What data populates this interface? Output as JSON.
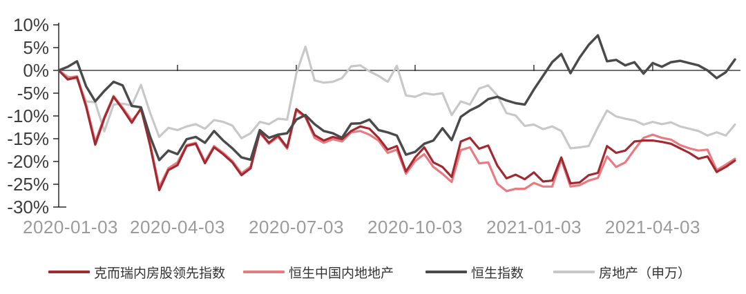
{
  "chart_data": {
    "type": "line",
    "title": "",
    "grid": false,
    "legend_position": "bottom",
    "x_axis": {
      "unit": "week",
      "tick_labels": [
        "2020-01-03",
        "2020-04-03",
        "2020-07-03",
        "2020-10-03",
        "2021-01-03",
        "2021-04-03"
      ],
      "tick_weeks": [
        0,
        13,
        26,
        39,
        52,
        65
      ]
    },
    "y_axis": {
      "range": [
        -30,
        10
      ],
      "tick_values": [
        10,
        5,
        0,
        -5,
        -10,
        -15,
        -20,
        -25,
        -30
      ],
      "tick_labels": [
        "10%",
        "5%",
        "0%",
        "-5%",
        "-10%",
        "-15%",
        "-20%",
        "-25%",
        "-30%"
      ]
    },
    "series": [
      {
        "name": "克而瑞内房股领先指数",
        "color": "#A2292F",
        "values": [
          0,
          -2.0,
          -1.5,
          -8.0,
          -16.3,
          -10.5,
          -5.8,
          -8.5,
          -11.5,
          -8.3,
          -16.5,
          -26.3,
          -21.9,
          -20.8,
          -16.6,
          -16.1,
          -20.4,
          -16.9,
          -18.4,
          -20.2,
          -23.0,
          -21.5,
          -13.5,
          -15.9,
          -14.3,
          -16.9,
          -8.5,
          -10.1,
          -14.2,
          -15.4,
          -14.6,
          -15.1,
          -13.3,
          -12.3,
          -12.8,
          -14.8,
          -17.4,
          -16.6,
          -22.2,
          -19.1,
          -16.9,
          -20.2,
          -21.2,
          -23.4,
          -15.6,
          -14.8,
          -17.2,
          -16.5,
          -20.9,
          -23.7,
          -22.9,
          -23.9,
          -22.4,
          -24.4,
          -24.2,
          -19.1,
          -24.8,
          -24.6,
          -23.0,
          -22.5,
          -16.6,
          -18.1,
          -17.6,
          -15.6,
          -15.4,
          -15.4,
          -15.7,
          -16.1,
          -17.1,
          -18.1,
          -19.4,
          -18.9,
          -22.3,
          -21.2,
          -19.8
        ]
      },
      {
        "name": "恒生中国内地地产",
        "color": "#E97A80",
        "values": [
          0,
          -1.6,
          -1.3,
          -7.5,
          -15.7,
          -10.2,
          -5.6,
          -8.2,
          -11.0,
          -8.6,
          -16.0,
          -25.6,
          -21.5,
          -20.2,
          -16.4,
          -15.9,
          -20.0,
          -16.6,
          -18.1,
          -19.9,
          -22.6,
          -21.1,
          -13.7,
          -16.1,
          -14.6,
          -17.2,
          -8.8,
          -10.3,
          -14.8,
          -15.9,
          -15.1,
          -15.6,
          -13.6,
          -13.3,
          -14.1,
          -15.4,
          -18.1,
          -17.4,
          -22.7,
          -19.9,
          -18.4,
          -21.2,
          -22.7,
          -24.5,
          -17.5,
          -16.9,
          -20.4,
          -20.2,
          -24.9,
          -26.5,
          -26.0,
          -26.0,
          -24.7,
          -25.5,
          -25.5,
          -19.6,
          -25.5,
          -25.2,
          -24.2,
          -23.6,
          -18.9,
          -21.2,
          -20.2,
          -17.4,
          -14.8,
          -14.1,
          -14.8,
          -15.2,
          -16.4,
          -17.1,
          -17.6,
          -17.4,
          -21.9,
          -20.7,
          -19.4
        ]
      },
      {
        "name": "恒生指数",
        "color": "#4A4A4B",
        "values": [
          0,
          0.8,
          2.0,
          -3.5,
          -6.8,
          -4.5,
          -2.5,
          -3.3,
          -7.8,
          -8.1,
          -14.5,
          -19.7,
          -17.6,
          -18.4,
          -15.1,
          -14.6,
          -15.9,
          -13.3,
          -15.4,
          -17.1,
          -19.1,
          -19.6,
          -13.1,
          -14.8,
          -14.1,
          -13.8,
          -10.8,
          -9.8,
          -11.8,
          -13.3,
          -13.8,
          -14.8,
          -11.7,
          -11.6,
          -10.8,
          -13.1,
          -13.6,
          -14.3,
          -18.5,
          -17.9,
          -16.1,
          -15.4,
          -12.7,
          -15.3,
          -10.2,
          -8.8,
          -7.8,
          -6.3,
          -5.8,
          -6.6,
          -7.2,
          -7.5,
          -4.2,
          -1.2,
          1.8,
          3.6,
          -0.6,
          2.8,
          5.6,
          7.7,
          2.0,
          2.3,
          1.1,
          1.8,
          -0.7,
          1.6,
          0.8,
          1.8,
          2.1,
          1.6,
          1.1,
          0.0,
          -1.7,
          -0.4,
          2.4
        ]
      },
      {
        "name": "房地产（申万）",
        "color": "#C8C8C8",
        "values": [
          0,
          -1.3,
          -2.0,
          -6.8,
          -7.0,
          -13.4,
          -7.5,
          -7.3,
          -7.7,
          -3.2,
          -9.3,
          -14.6,
          -12.6,
          -13.1,
          -12.3,
          -11.8,
          -12.8,
          -10.9,
          -11.3,
          -12.1,
          -14.9,
          -13.8,
          -11.3,
          -11.8,
          -10.6,
          -10.8,
          -0.7,
          5.2,
          -2.2,
          -2.7,
          -2.5,
          -1.7,
          0.9,
          1.1,
          -0.2,
          -1.2,
          -2.5,
          1.0,
          -5.5,
          -5.8,
          -5.0,
          -5.3,
          -5.0,
          -9.8,
          -6.8,
          -7.5,
          -4.0,
          -3.3,
          -5.5,
          -9.4,
          -9.9,
          -12.2,
          -11.9,
          -12.9,
          -12.3,
          -13.3,
          -17.1,
          -16.9,
          -16.6,
          -12.5,
          -8.8,
          -10.1,
          -10.6,
          -11.0,
          -11.9,
          -11.3,
          -11.8,
          -11.4,
          -12.3,
          -12.8,
          -13.3,
          -14.3,
          -13.6,
          -14.3,
          -11.9
        ]
      }
    ],
    "colors": {
      "axis_line": "#1a1a1a",
      "y_label": "#3d3d3d",
      "x_label": "#9b9b9b",
      "legend_text": "#333333",
      "background": "#ffffff"
    }
  }
}
